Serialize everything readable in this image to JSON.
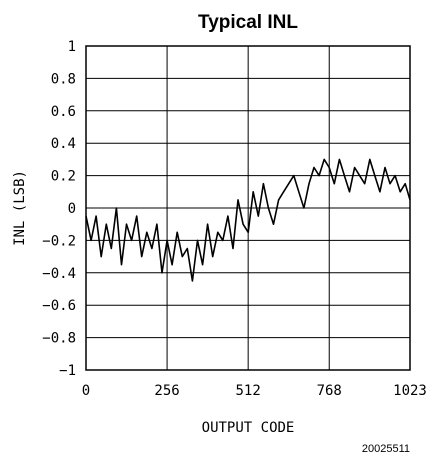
{
  "chart_data": {
    "type": "line",
    "title": "Typical INL",
    "xlabel": "OUTPUT CODE",
    "ylabel": "INL (LSB)",
    "xlim": [
      0,
      1023
    ],
    "ylim": [
      -1,
      1
    ],
    "x_ticks": [
      0,
      256,
      512,
      768,
      1023
    ],
    "x_tick_labels": [
      "0",
      "256",
      "512",
      "768",
      "1023"
    ],
    "y_ticks": [
      1,
      0.8,
      0.6,
      0.4,
      0.2,
      0,
      -0.2,
      -0.4,
      -0.6,
      -0.8,
      -1
    ],
    "y_tick_labels": [
      "1",
      "0.8",
      "0.6",
      "0.4",
      "0.2",
      "0",
      "−0.2",
      "−0.4",
      "−0.6",
      "−0.8",
      "−1"
    ],
    "grid": true,
    "series": [
      {
        "color": "#000000",
        "x": [
          0,
          16,
          32,
          48,
          64,
          80,
          96,
          112,
          128,
          144,
          160,
          176,
          192,
          208,
          224,
          240,
          256,
          272,
          288,
          304,
          320,
          336,
          352,
          368,
          384,
          400,
          416,
          432,
          448,
          464,
          480,
          496,
          512,
          528,
          544,
          560,
          576,
          592,
          608,
          624,
          640,
          656,
          672,
          688,
          704,
          720,
          736,
          752,
          768,
          784,
          800,
          816,
          832,
          848,
          864,
          880,
          896,
          912,
          928,
          944,
          960,
          976,
          992,
          1008,
          1023
        ],
        "values": [
          -0.05,
          -0.2,
          -0.05,
          -0.3,
          -0.1,
          -0.25,
          0.0,
          -0.35,
          -0.1,
          -0.2,
          -0.05,
          -0.3,
          -0.15,
          -0.25,
          -0.1,
          -0.4,
          -0.2,
          -0.35,
          -0.15,
          -0.3,
          -0.25,
          -0.45,
          -0.2,
          -0.35,
          -0.1,
          -0.3,
          -0.15,
          -0.2,
          -0.05,
          -0.25,
          0.05,
          -0.1,
          -0.15,
          0.1,
          -0.05,
          0.15,
          0.0,
          -0.1,
          0.05,
          0.1,
          0.15,
          0.2,
          0.1,
          0.0,
          0.15,
          0.25,
          0.2,
          0.3,
          0.25,
          0.15,
          0.3,
          0.2,
          0.1,
          0.25,
          0.2,
          0.15,
          0.3,
          0.2,
          0.1,
          0.25,
          0.15,
          0.2,
          0.1,
          0.15,
          0.05
        ]
      }
    ]
  },
  "figure_id": "20025511"
}
